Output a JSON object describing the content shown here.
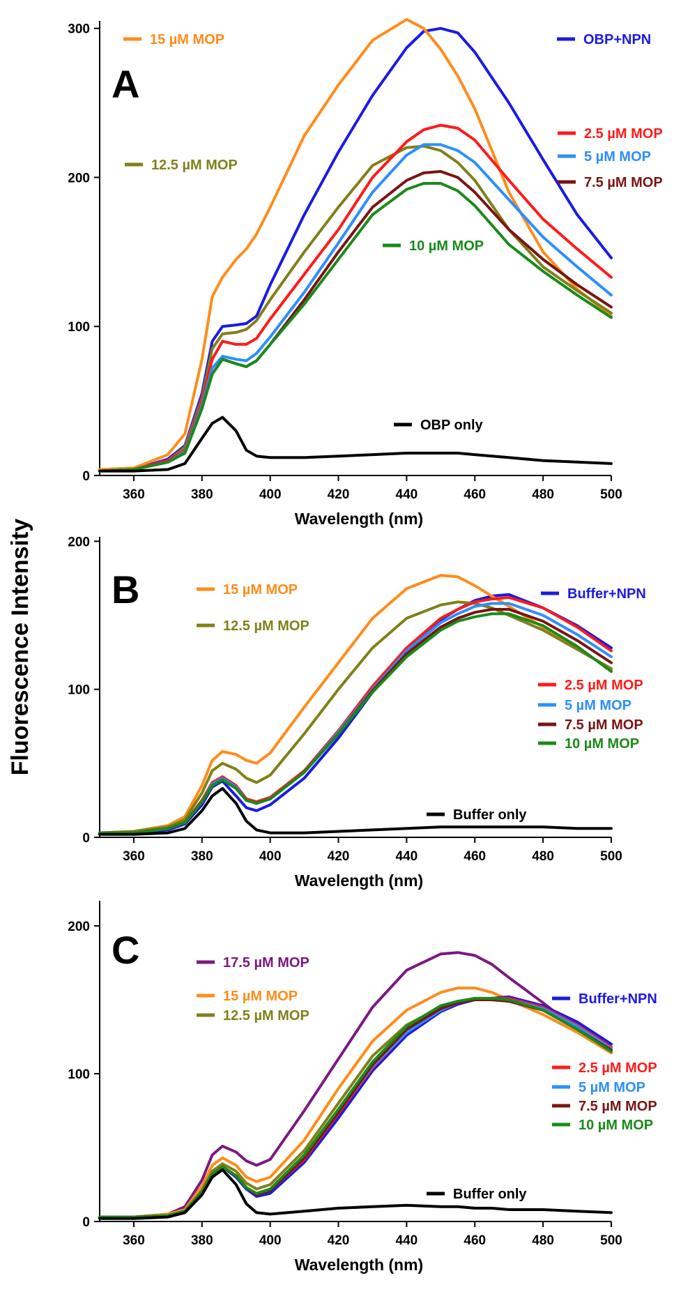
{
  "y_axis_title": "Fluorescence Intensity",
  "chart_data": [
    {
      "type": "line",
      "panel_label": "A",
      "xlabel": "Wavelength (nm)",
      "ylabel": "Fluorescence Intensity",
      "xlim": [
        350,
        500
      ],
      "ylim": [
        0,
        305
      ],
      "xticks": [
        360,
        380,
        400,
        420,
        440,
        460,
        480,
        500
      ],
      "yticks": [
        0,
        100,
        200,
        300
      ],
      "x": [
        350,
        360,
        370,
        375,
        380,
        383,
        386,
        390,
        393,
        396,
        400,
        410,
        420,
        430,
        440,
        445,
        450,
        455,
        460,
        470,
        480,
        490,
        500
      ],
      "series": [
        {
          "name": "OBP+NPN",
          "color": "#1a1ae6",
          "values": [
            3,
            4,
            11,
            20,
            55,
            90,
            100,
            101,
            102,
            107,
            128,
            175,
            217,
            255,
            287,
            298,
            300,
            297,
            284,
            250,
            212,
            175,
            146
          ]
        },
        {
          "name": "15 µM MOP",
          "color": "#ff8c1a",
          "values": [
            4,
            5,
            14,
            28,
            78,
            120,
            133,
            145,
            152,
            162,
            180,
            228,
            262,
            292,
            306,
            300,
            286,
            268,
            246,
            190,
            150,
            125,
            107
          ]
        },
        {
          "name": "12.5 µM MOP",
          "color": "#808019",
          "values": [
            3,
            4,
            10,
            19,
            52,
            85,
            95,
            96,
            98,
            104,
            118,
            150,
            180,
            208,
            220,
            221,
            218,
            210,
            198,
            165,
            140,
            124,
            109
          ]
        },
        {
          "name": "2.5 µM MOP",
          "color": "#ff1a1a",
          "values": [
            3,
            4,
            10,
            17,
            50,
            78,
            90,
            88,
            88,
            92,
            105,
            135,
            165,
            200,
            224,
            232,
            235,
            233,
            225,
            198,
            172,
            152,
            133
          ]
        },
        {
          "name": "5 µM MOP",
          "color": "#2b8fff",
          "values": [
            3,
            4,
            9,
            16,
            47,
            72,
            80,
            78,
            77,
            82,
            93,
            123,
            156,
            190,
            215,
            222,
            222,
            218,
            210,
            185,
            160,
            140,
            121
          ]
        },
        {
          "name": "7.5 µM MOP",
          "color": "#7a1414",
          "values": [
            3,
            4,
            9,
            15,
            45,
            68,
            78,
            75,
            73,
            77,
            88,
            118,
            150,
            180,
            198,
            203,
            204,
            200,
            190,
            165,
            145,
            128,
            113
          ]
        },
        {
          "name": "10 µM MOP",
          "color": "#1a8a1a",
          "values": [
            3,
            4,
            9,
            15,
            45,
            68,
            78,
            75,
            73,
            77,
            88,
            115,
            145,
            175,
            192,
            196,
            196,
            191,
            181,
            155,
            137,
            121,
            106
          ]
        },
        {
          "name": "OBP only",
          "color": "#000000",
          "values": [
            3,
            3,
            4,
            8,
            25,
            35,
            39,
            30,
            17,
            13,
            12,
            12,
            13,
            14,
            15,
            15,
            15,
            15,
            14,
            12,
            10,
            9,
            8
          ]
        }
      ]
    },
    {
      "type": "line",
      "panel_label": "B",
      "xlabel": "Wavelength (nm)",
      "ylabel": "Fluorescence Intensity",
      "xlim": [
        350,
        500
      ],
      "ylim": [
        0,
        203
      ],
      "xticks": [
        360,
        380,
        400,
        420,
        440,
        460,
        480,
        500
      ],
      "yticks": [
        0,
        100,
        200
      ],
      "x": [
        350,
        360,
        370,
        375,
        380,
        383,
        386,
        390,
        393,
        396,
        400,
        410,
        420,
        430,
        440,
        450,
        455,
        460,
        465,
        470,
        480,
        490,
        500
      ],
      "series": [
        {
          "name": "Buffer+NPN",
          "color": "#1a1ae6",
          "values": [
            2,
            3,
            5,
            9,
            22,
            34,
            38,
            28,
            20,
            18,
            22,
            40,
            67,
            98,
            125,
            147,
            154,
            160,
            163,
            164,
            155,
            143,
            128
          ]
        },
        {
          "name": "15 µM MOP",
          "color": "#ff8c1a",
          "values": [
            3,
            4,
            8,
            14,
            35,
            52,
            58,
            56,
            52,
            50,
            57,
            88,
            118,
            148,
            168,
            177,
            176,
            170,
            163,
            156,
            142,
            128,
            113
          ]
        },
        {
          "name": "12.5 µM MOP",
          "color": "#808019",
          "values": [
            3,
            4,
            7,
            12,
            30,
            45,
            50,
            46,
            40,
            37,
            42,
            70,
            100,
            128,
            148,
            157,
            159,
            158,
            155,
            150,
            140,
            127,
            114
          ]
        },
        {
          "name": "2.5 µM MOP",
          "color": "#ff1a1a",
          "values": [
            3,
            3,
            6,
            10,
            25,
            37,
            41,
            35,
            26,
            24,
            27,
            45,
            72,
            102,
            128,
            148,
            154,
            159,
            161,
            162,
            155,
            142,
            126
          ]
        },
        {
          "name": "5 µM MOP",
          "color": "#2b8fff",
          "values": [
            3,
            3,
            6,
            10,
            24,
            36,
            40,
            34,
            25,
            23,
            26,
            44,
            71,
            100,
            126,
            145,
            151,
            156,
            158,
            158,
            150,
            137,
            122
          ]
        },
        {
          "name": "7.5 µM MOP",
          "color": "#7a1414",
          "values": [
            3,
            3,
            6,
            10,
            24,
            35,
            39,
            33,
            25,
            23,
            26,
            44,
            70,
            99,
            124,
            142,
            148,
            152,
            154,
            154,
            146,
            133,
            118
          ]
        },
        {
          "name": "10 µM MOP",
          "color": "#1a8a1a",
          "values": [
            3,
            3,
            6,
            10,
            24,
            35,
            39,
            33,
            25,
            23,
            26,
            44,
            70,
            98,
            122,
            140,
            146,
            149,
            151,
            151,
            143,
            129,
            112
          ]
        },
        {
          "name": "Buffer only",
          "color": "#000000",
          "values": [
            2,
            2,
            3,
            6,
            18,
            28,
            33,
            23,
            11,
            5,
            3,
            3,
            4,
            5,
            6,
            7,
            7,
            7,
            7,
            7,
            7,
            6,
            6
          ]
        }
      ]
    },
    {
      "type": "line",
      "panel_label": "C",
      "xlabel": "Wavelength (nm)",
      "ylabel": "Fluorescence Intensity",
      "xlim": [
        350,
        500
      ],
      "ylim": [
        0,
        217
      ],
      "xticks": [
        360,
        380,
        400,
        420,
        440,
        460,
        480,
        500
      ],
      "yticks": [
        0,
        100,
        200
      ],
      "x": [
        350,
        360,
        370,
        375,
        380,
        383,
        386,
        390,
        393,
        396,
        400,
        410,
        420,
        430,
        440,
        450,
        455,
        460,
        465,
        470,
        480,
        490,
        500
      ],
      "series": [
        {
          "name": "17.5 µM MOP",
          "color": "#7a1a80",
          "values": [
            3,
            3,
            5,
            10,
            28,
            45,
            51,
            47,
            41,
            38,
            42,
            75,
            110,
            145,
            170,
            181,
            182,
            180,
            174,
            165,
            148,
            130,
            115
          ]
        },
        {
          "name": "15 µM MOP",
          "color": "#ff8c1a",
          "values": [
            3,
            3,
            5,
            8,
            24,
            38,
            43,
            38,
            30,
            27,
            30,
            55,
            90,
            122,
            143,
            155,
            158,
            158,
            155,
            150,
            140,
            128,
            114
          ]
        },
        {
          "name": "12.5 µM MOP",
          "color": "#808019",
          "values": [
            3,
            3,
            4,
            7,
            21,
            34,
            39,
            34,
            26,
            22,
            25,
            48,
            80,
            112,
            133,
            145,
            148,
            150,
            150,
            149,
            143,
            131,
            116
          ]
        },
        {
          "name": "Buffer+NPN",
          "color": "#1a1ae6",
          "values": [
            3,
            3,
            4,
            7,
            20,
            32,
            37,
            30,
            22,
            17,
            19,
            40,
            70,
            102,
            126,
            142,
            147,
            150,
            151,
            152,
            146,
            135,
            120
          ]
        },
        {
          "name": "2.5 µM MOP",
          "color": "#ff1a1a",
          "values": [
            3,
            3,
            4,
            7,
            20,
            32,
            37,
            31,
            23,
            18,
            21,
            42,
            73,
            104,
            128,
            143,
            148,
            150,
            151,
            151,
            145,
            133,
            118
          ]
        },
        {
          "name": "5 µM MOP",
          "color": "#2b8fff",
          "values": [
            3,
            3,
            4,
            7,
            20,
            32,
            37,
            31,
            23,
            18,
            21,
            43,
            74,
            105,
            128,
            143,
            148,
            150,
            150,
            150,
            144,
            132,
            117
          ]
        },
        {
          "name": "7.5 µM MOP",
          "color": "#7a1414",
          "values": [
            3,
            3,
            4,
            7,
            20,
            32,
            37,
            31,
            23,
            18,
            21,
            43,
            74,
            106,
            130,
            144,
            148,
            150,
            150,
            149,
            143,
            130,
            116
          ]
        },
        {
          "name": "10 µM MOP",
          "color": "#1a8a1a",
          "values": [
            3,
            3,
            4,
            7,
            20,
            32,
            37,
            31,
            23,
            19,
            22,
            45,
            76,
            108,
            132,
            146,
            149,
            151,
            151,
            150,
            143,
            130,
            115
          ]
        },
        {
          "name": "Buffer only",
          "color": "#000000",
          "values": [
            2,
            2,
            3,
            6,
            18,
            30,
            35,
            25,
            12,
            6,
            5,
            7,
            9,
            10,
            11,
            10,
            10,
            9,
            9,
            8,
            8,
            7,
            6
          ]
        }
      ]
    }
  ]
}
